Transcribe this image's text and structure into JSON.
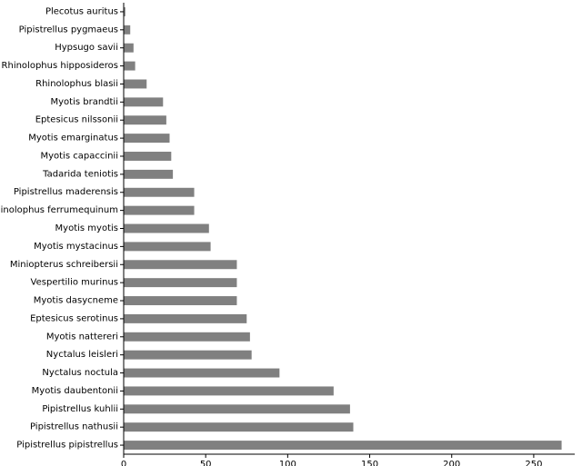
{
  "chart_data": {
    "type": "bar",
    "orientation": "horizontal",
    "title": "",
    "xlabel": "",
    "ylabel": "",
    "categories": [
      "Pipistrellus pipistrellus",
      "Pipistrellus nathusii",
      "Pipistrellus kuhlii",
      "Myotis daubentonii",
      "Nyctalus noctula",
      "Nyctalus leisleri",
      "Myotis nattereri",
      "Eptesicus serotinus",
      "Myotis dasycneme",
      "Vespertilio murinus",
      "Miniopterus schreibersii",
      "Myotis mystacinus",
      "Myotis myotis",
      "Rhinolophus ferrumequinum",
      "Pipistrellus maderensis",
      "Tadarida teniotis",
      "Myotis capaccinii",
      "Myotis emarginatus",
      "Eptesicus nilssonii",
      "Myotis brandtii",
      "Rhinolophus blasii",
      "Rhinolophus hipposideros",
      "Hypsugo savii",
      "Pipistrellus pygmaeus",
      "Plecotus auritus"
    ],
    "values": [
      267,
      140,
      138,
      128,
      95,
      78,
      77,
      75,
      69,
      69,
      69,
      53,
      52,
      43,
      43,
      30,
      29,
      28,
      26,
      24,
      14,
      7,
      6,
      4,
      1
    ],
    "xlim": [
      0,
      275
    ],
    "xticks": [
      0,
      50,
      100,
      150,
      200,
      250
    ],
    "bar_color": "#808080",
    "grid": false,
    "legend": "none"
  }
}
